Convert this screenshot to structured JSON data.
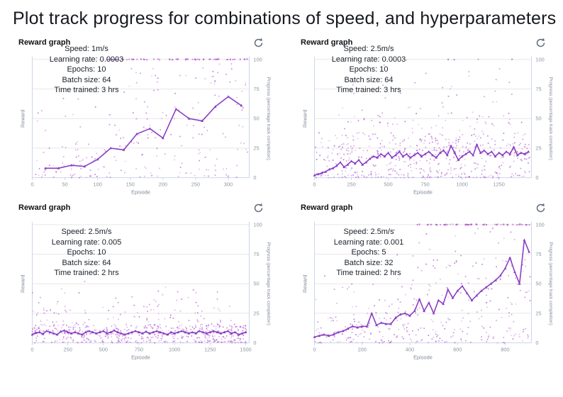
{
  "page_title": "Plot track progress for combinations of speed, and hyperparameters",
  "icons": {
    "refresh": "circular-arrow-refresh"
  },
  "colors": {
    "line": "#8b3dc4",
    "point": "#b45ecf",
    "grid": "#e7e7e7",
    "axis": "#ccd6ea",
    "tick_text": "#8c96a0",
    "axis_title_text": "#80899a",
    "refresh_icon": "#5f6b7a"
  },
  "chart_data": [
    {
      "type": "scatter",
      "title": "Reward graph",
      "annotation": [
        "Speed: 1m/s",
        "Learning rate: 0.0003",
        "Epochs: 10",
        "Batch size: 64",
        "Time trained: 3 hrs"
      ],
      "xlabel": "Episode",
      "ylabel": "Reward",
      "y2label": "Progress (percentage track completion)",
      "x_ticks": [
        0,
        50,
        100,
        150,
        200,
        250,
        300
      ],
      "x_max": 332,
      "y_ticks": [
        0,
        25,
        50,
        75,
        100
      ],
      "y_lim": [
        0,
        100
      ],
      "line_series": {
        "x_start": 20,
        "x_step": 20,
        "y": [
          8,
          8,
          10.5,
          9.5,
          15.5,
          25,
          23.5,
          37,
          41.5,
          33.5,
          58,
          50,
          48,
          60,
          68.5,
          61
        ]
      },
      "scatter_clusters": [
        {
          "count": 62,
          "x": [
            2,
            115
          ],
          "y": [
            0,
            32
          ],
          "bias": 1.5
        },
        {
          "count": 10,
          "x": [
            2,
            115
          ],
          "y": [
            32,
            72
          ],
          "bias": 1.2
        },
        {
          "count": 140,
          "x": [
            115,
            332
          ],
          "y": [
            0,
            93
          ],
          "bias": 1.25
        },
        {
          "count": 12,
          "x": [
            230,
            332
          ],
          "y": [
            80,
            97
          ],
          "bias": 1.0
        }
      ],
      "top_band": {
        "count": 60,
        "x": [
          110,
          332
        ],
        "y": 100
      },
      "seed": 101
    },
    {
      "type": "scatter",
      "title": "Reward graph",
      "annotation": [
        "Speed: 2.5m/s",
        "Learning rate: 0.0003",
        "Epochs: 10",
        "Batch size: 64",
        "Time trained: 3 hrs"
      ],
      "xlabel": "Episode",
      "ylabel": "Reward",
      "y2label": "Progress (percentage track completion)",
      "x_ticks": [
        0,
        250,
        500,
        750,
        1000,
        1250
      ],
      "x_max": 1470,
      "y_ticks": [
        0,
        25,
        50,
        75,
        100
      ],
      "y_lim": [
        0,
        100
      ],
      "line_series": {
        "x_start": 0,
        "x_step": 25,
        "y": [
          2,
          3,
          4,
          5,
          7,
          8,
          10,
          13,
          9,
          11,
          14,
          12,
          15,
          11,
          13,
          16,
          18,
          17,
          20,
          18,
          21,
          17,
          19,
          22,
          18,
          20,
          17,
          19,
          21,
          18,
          20,
          22,
          19,
          17,
          21,
          23,
          19,
          27,
          21,
          15,
          18,
          20,
          22,
          19,
          28,
          21,
          23,
          20,
          22,
          18,
          21,
          19,
          22,
          20,
          26,
          19,
          21,
          20,
          22
        ]
      },
      "scatter_clusters": [
        {
          "count": 420,
          "x": [
            0,
            1460
          ],
          "y": [
            0,
            38
          ],
          "bias": 1.6
        },
        {
          "count": 120,
          "x": [
            100,
            1460
          ],
          "y": [
            20,
            55
          ],
          "bias": 1.4
        },
        {
          "count": 40,
          "x": [
            150,
            1460
          ],
          "y": [
            45,
            80
          ],
          "bias": 1.3
        },
        {
          "count": 10,
          "x": [
            400,
            1460
          ],
          "y": [
            80,
            100
          ],
          "bias": 1.0
        }
      ],
      "top_band": {
        "count": 4,
        "x": [
          600,
          1350
        ],
        "y": 100
      },
      "seed": 202
    },
    {
      "type": "scatter",
      "title": "Reward graph",
      "annotation": [
        "Speed: 2.5m/s",
        "Learning rate: 0.005",
        "Epochs: 10",
        "Batch size: 64",
        "Time trained: 2 hrs"
      ],
      "xlabel": "Episode",
      "ylabel": "Reward",
      "y2label": "Progress (percentage track completion)",
      "x_ticks": [
        0,
        250,
        500,
        750,
        1000,
        1250,
        1500
      ],
      "x_max": 1525,
      "y_ticks": [
        0,
        25,
        50,
        75,
        100
      ],
      "y_lim": [
        0,
        100
      ],
      "line_series": {
        "x_start": 0,
        "x_step": 25,
        "y": [
          7,
          8.5,
          9,
          7.5,
          10,
          9,
          8,
          7,
          9.5,
          10.5,
          9,
          8,
          9,
          8,
          7,
          9,
          10,
          9,
          8,
          9,
          10,
          8,
          9,
          10.5,
          9,
          8,
          7,
          8,
          9,
          10,
          9,
          8,
          9.5,
          8,
          9,
          10,
          9,
          8,
          7,
          9,
          8,
          9,
          10,
          9,
          8,
          9,
          8,
          10,
          9,
          8,
          9,
          10,
          9,
          8,
          9,
          10,
          8,
          9,
          7,
          8,
          9
        ]
      },
      "scatter_clusters": [
        {
          "count": 430,
          "x": [
            0,
            1505
          ],
          "y": [
            0,
            16
          ],
          "bias": 1.4
        },
        {
          "count": 120,
          "x": [
            0,
            1505
          ],
          "y": [
            10,
            28
          ],
          "bias": 1.5
        },
        {
          "count": 45,
          "x": [
            0,
            1505
          ],
          "y": [
            25,
            45
          ],
          "bias": 1.4
        },
        {
          "count": 3,
          "x": [
            150,
            1300
          ],
          "y": [
            45,
            55
          ],
          "bias": 1.0
        }
      ],
      "top_band": {
        "count": 0,
        "x": [
          0,
          0
        ],
        "y": 100
      },
      "seed": 303
    },
    {
      "type": "scatter",
      "title": "Reward graph",
      "annotation": [
        "Speed: 2.5m/s",
        "Learning rate: 0.001",
        "Epochs: 5",
        "Batch size: 32",
        "Time trained: 2 hrs"
      ],
      "xlabel": "Episode",
      "ylabel": "Reward",
      "y2label": "Progress (percentage track completion)",
      "x_ticks": [
        0,
        200,
        400,
        600,
        800
      ],
      "x_max": 910,
      "y_ticks": [
        0,
        25,
        50,
        75,
        100
      ],
      "y_lim": [
        0,
        100
      ],
      "line_series": {
        "x_start": 0,
        "x_step": 20,
        "y": [
          5,
          6,
          7,
          6,
          7,
          9,
          10,
          12,
          14,
          13,
          14,
          14,
          25,
          15,
          17,
          16,
          16,
          21,
          24,
          25,
          23,
          27,
          37,
          27,
          34,
          25,
          36,
          33,
          45,
          38,
          44,
          48,
          42,
          36,
          40,
          44,
          47,
          50,
          53,
          57,
          63,
          72,
          60,
          50,
          87,
          77
        ]
      },
      "scatter_clusters": [
        {
          "count": 60,
          "x": [
            0,
            200
          ],
          "y": [
            0,
            22
          ],
          "bias": 1.6
        },
        {
          "count": 80,
          "x": [
            200,
            450
          ],
          "y": [
            0,
            40
          ],
          "bias": 1.7
        },
        {
          "count": 150,
          "x": [
            450,
            905
          ],
          "y": [
            0,
            70
          ],
          "bias": 1.5
        },
        {
          "count": 25,
          "x": [
            0,
            450
          ],
          "y": [
            22,
            60
          ],
          "bias": 1.4
        },
        {
          "count": 30,
          "x": [
            300,
            905
          ],
          "y": [
            60,
            97
          ],
          "bias": 1.2
        }
      ],
      "top_band": {
        "count": 55,
        "x": [
          430,
          905
        ],
        "y": 100
      },
      "seed": 404
    }
  ]
}
